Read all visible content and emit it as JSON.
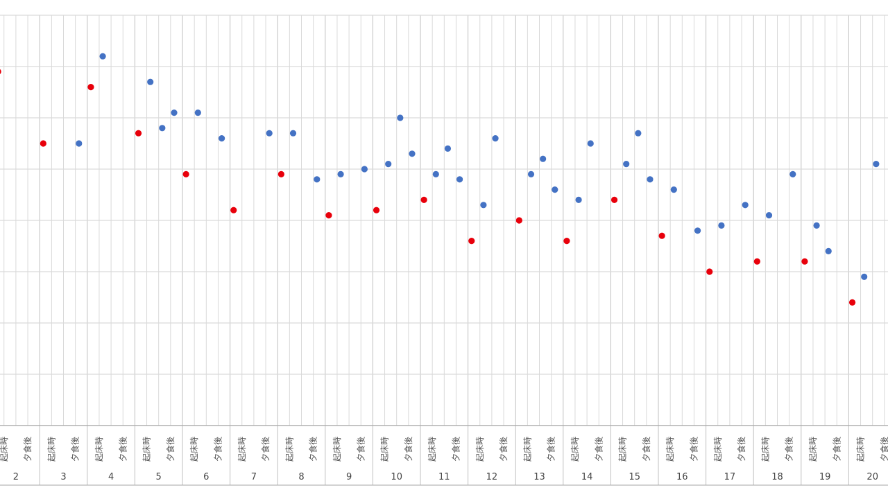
{
  "chart_data": {
    "type": "scatter",
    "title": "",
    "xlabel": "",
    "ylabel": "",
    "grid": true,
    "days": [
      "2",
      "3",
      "4",
      "5",
      "6",
      "7",
      "8",
      "9",
      "10",
      "11",
      "12",
      "13",
      "14",
      "15",
      "16",
      "17",
      "18",
      "19",
      "20"
    ],
    "sub_labels": [
      "起床時",
      "夕食後"
    ],
    "ylim": [
      0,
      8
    ],
    "series": [
      {
        "color": "#e8000b",
        "points": [
          {
            "x": 0.0,
            "y": 6.9
          },
          {
            "x": 3.8,
            "y": 5.5
          },
          {
            "x": 7.8,
            "y": 6.6
          },
          {
            "x": 11.8,
            "y": 5.7
          },
          {
            "x": 15.8,
            "y": 4.9
          },
          {
            "x": 19.8,
            "y": 4.2
          },
          {
            "x": 23.8,
            "y": 4.9
          },
          {
            "x": 27.8,
            "y": 4.1
          },
          {
            "x": 31.8,
            "y": 4.2
          },
          {
            "x": 35.8,
            "y": 4.4
          },
          {
            "x": 39.8,
            "y": 3.6
          },
          {
            "x": 43.8,
            "y": 4.0
          },
          {
            "x": 47.8,
            "y": 3.6
          },
          {
            "x": 51.8,
            "y": 4.4
          },
          {
            "x": 55.8,
            "y": 3.7
          },
          {
            "x": 59.8,
            "y": 3.0
          },
          {
            "x": 63.8,
            "y": 3.2
          },
          {
            "x": 67.8,
            "y": 3.2
          },
          {
            "x": 71.8,
            "y": 2.4
          }
        ]
      },
      {
        "color": "#4472c4",
        "points": [
          {
            "x": 6.8,
            "y": 5.5
          },
          {
            "x": 8.8,
            "y": 7.2
          },
          {
            "x": 12.8,
            "y": 6.7
          },
          {
            "x": 13.8,
            "y": 5.8
          },
          {
            "x": 14.8,
            "y": 6.1
          },
          {
            "x": 16.8,
            "y": 6.1
          },
          {
            "x": 18.8,
            "y": 5.6
          },
          {
            "x": 22.8,
            "y": 5.7
          },
          {
            "x": 24.8,
            "y": 5.7
          },
          {
            "x": 26.8,
            "y": 4.8
          },
          {
            "x": 28.8,
            "y": 4.9
          },
          {
            "x": 30.8,
            "y": 5.0
          },
          {
            "x": 32.8,
            "y": 5.1
          },
          {
            "x": 33.8,
            "y": 6.0
          },
          {
            "x": 34.8,
            "y": 5.3
          },
          {
            "x": 36.8,
            "y": 4.9
          },
          {
            "x": 37.8,
            "y": 5.4
          },
          {
            "x": 38.8,
            "y": 4.8
          },
          {
            "x": 40.8,
            "y": 4.3
          },
          {
            "x": 41.8,
            "y": 5.6
          },
          {
            "x": 44.8,
            "y": 4.9
          },
          {
            "x": 45.8,
            "y": 5.2
          },
          {
            "x": 46.8,
            "y": 4.6
          },
          {
            "x": 48.8,
            "y": 4.4
          },
          {
            "x": 49.8,
            "y": 5.5
          },
          {
            "x": 52.8,
            "y": 5.1
          },
          {
            "x": 53.8,
            "y": 5.7
          },
          {
            "x": 54.8,
            "y": 4.8
          },
          {
            "x": 56.8,
            "y": 4.6
          },
          {
            "x": 58.8,
            "y": 3.8
          },
          {
            "x": 60.8,
            "y": 3.9
          },
          {
            "x": 62.8,
            "y": 4.3
          },
          {
            "x": 64.8,
            "y": 4.1
          },
          {
            "x": 66.8,
            "y": 4.9
          },
          {
            "x": 68.8,
            "y": 3.9
          },
          {
            "x": 69.8,
            "y": 3.4
          },
          {
            "x": 72.8,
            "y": 2.9
          },
          {
            "x": 73.8,
            "y": 5.1
          }
        ]
      }
    ]
  }
}
